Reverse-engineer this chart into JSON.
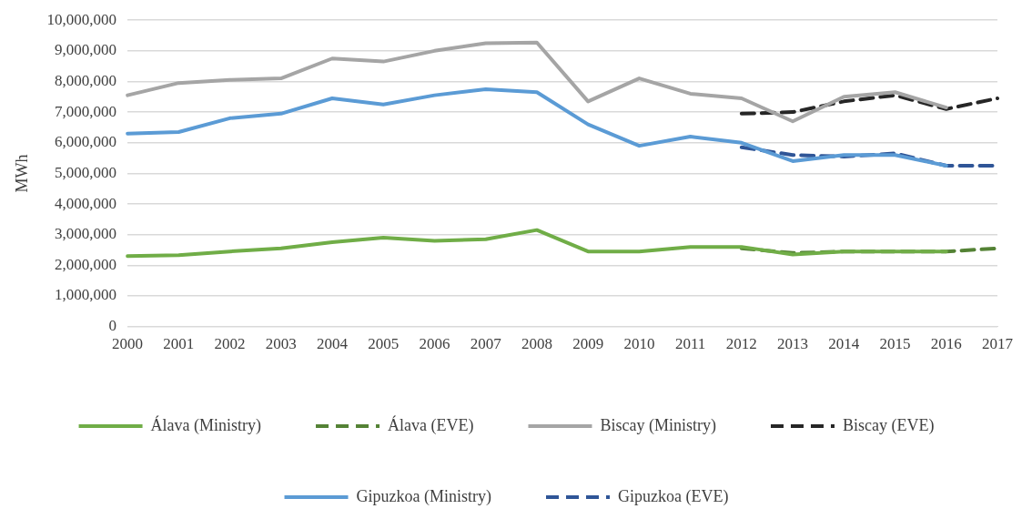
{
  "chart_data": {
    "type": "line",
    "ylabel": "MWh",
    "categories": [
      "2000",
      "2001",
      "2002",
      "2003",
      "2004",
      "2005",
      "2006",
      "2007",
      "2008",
      "2009",
      "2010",
      "2011",
      "2012",
      "2013",
      "2014",
      "2015",
      "2016",
      "2017"
    ],
    "ylim": [
      0,
      10000000
    ],
    "yticks": [
      0,
      {
        "value": 1000000,
        "label": "1,000,000"
      },
      {
        "value": 2000000,
        "label": "2,000,000"
      },
      {
        "value": 3000000,
        "label": "3,000,000"
      },
      {
        "value": 4000000,
        "label": "4,000,000"
      },
      {
        "value": 5000000,
        "label": "5,000,000"
      },
      {
        "value": 6000000,
        "label": "6,000,000"
      },
      {
        "value": 7000000,
        "label": "7,000,000"
      },
      {
        "value": 8000000,
        "label": "8,000,000"
      },
      {
        "value": 9000000,
        "label": "9,000,000"
      },
      {
        "value": 10000000,
        "label": "10,000,000"
      }
    ],
    "grid": "y",
    "legend": "bottom",
    "marker": "none",
    "series": [
      {
        "name": "Álava (Ministry)",
        "color": "#70ad47",
        "line_style": "solid",
        "values": [
          2300000,
          2330000,
          2450000,
          2550000,
          2750000,
          2900000,
          2800000,
          2850000,
          3150000,
          2450000,
          2450000,
          2600000,
          2600000,
          2350000,
          2450000,
          2450000,
          2450000,
          null
        ]
      },
      {
        "name": "Álava (EVE)",
        "color": "#548235",
        "line_style": "dashed",
        "values": [
          null,
          null,
          null,
          null,
          null,
          null,
          null,
          null,
          null,
          null,
          null,
          null,
          2550000,
          2400000,
          2450000,
          2450000,
          2450000,
          2550000
        ]
      },
      {
        "name": "Biscay (Ministry)",
        "color": "#a5a5a5",
        "line_style": "solid",
        "values": [
          7550000,
          7950000,
          8050000,
          8100000,
          8750000,
          8650000,
          9000000,
          9250000,
          9270000,
          7350000,
          8100000,
          7600000,
          7450000,
          6700000,
          7500000,
          7650000,
          7150000,
          null
        ]
      },
      {
        "name": "Biscay (EVE)",
        "color": "#262626",
        "line_style": "dashed",
        "values": [
          null,
          null,
          null,
          null,
          null,
          null,
          null,
          null,
          null,
          null,
          null,
          null,
          6950000,
          7000000,
          7350000,
          7550000,
          7100000,
          7450000
        ]
      },
      {
        "name": "Gipuzkoa (Ministry)",
        "color": "#5b9bd5",
        "line_style": "solid",
        "values": [
          6300000,
          6350000,
          6800000,
          6950000,
          7450000,
          7250000,
          7550000,
          7750000,
          7650000,
          6600000,
          5900000,
          6200000,
          6000000,
          5400000,
          5600000,
          5600000,
          5250000,
          null
        ]
      },
      {
        "name": "Gipuzkoa (EVE)",
        "color": "#2f5597",
        "line_style": "dashed",
        "values": [
          null,
          null,
          null,
          null,
          null,
          null,
          null,
          null,
          null,
          null,
          null,
          null,
          5850000,
          5600000,
          5550000,
          5650000,
          5250000,
          5250000
        ]
      }
    ]
  }
}
